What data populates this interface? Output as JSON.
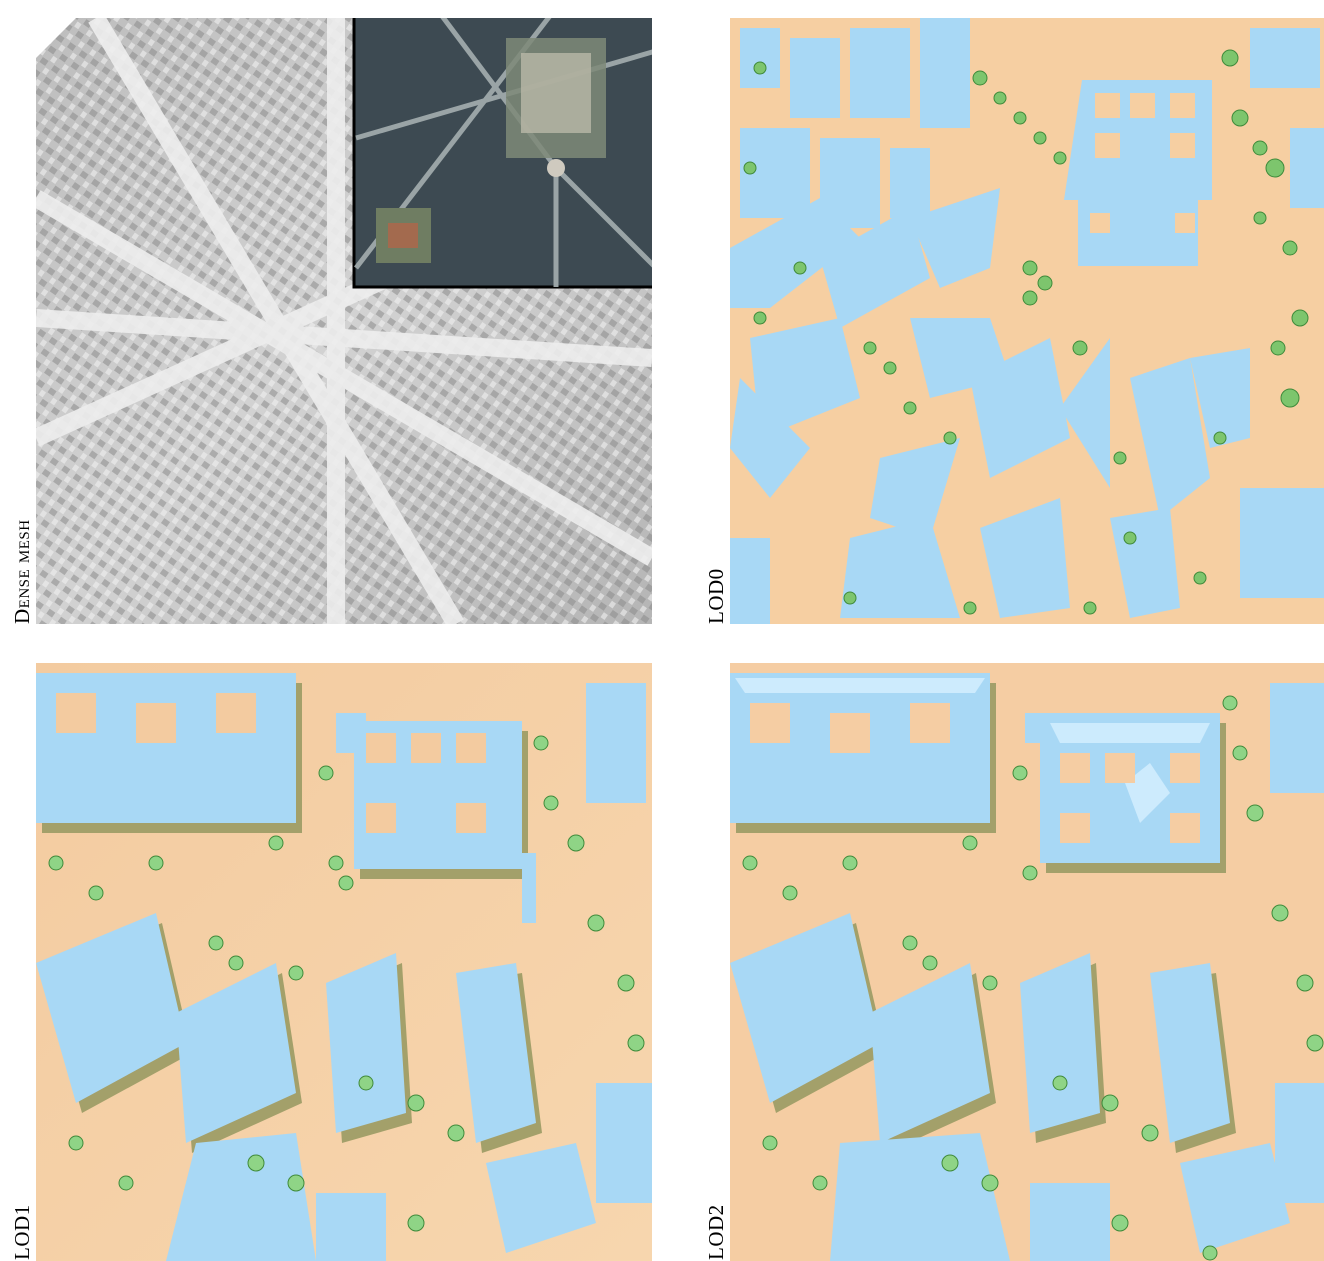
{
  "panels": [
    {
      "id": "dense-mesh",
      "label": "Dense mesh"
    },
    {
      "id": "lod0",
      "label": "LOD0"
    },
    {
      "id": "lod1",
      "label": "LOD1"
    },
    {
      "id": "lod2",
      "label": "LOD2"
    }
  ],
  "colors": {
    "ground": "#f6cfa2",
    "building": "#a8d8f5",
    "building_shadow": "#a3a06a",
    "tree": "#7dc56d",
    "tree_dark": "#3f8a3a",
    "mesh_light": "#e6e6e6",
    "mesh_dark": "#5a5a5a",
    "inset_border": "#000000"
  }
}
